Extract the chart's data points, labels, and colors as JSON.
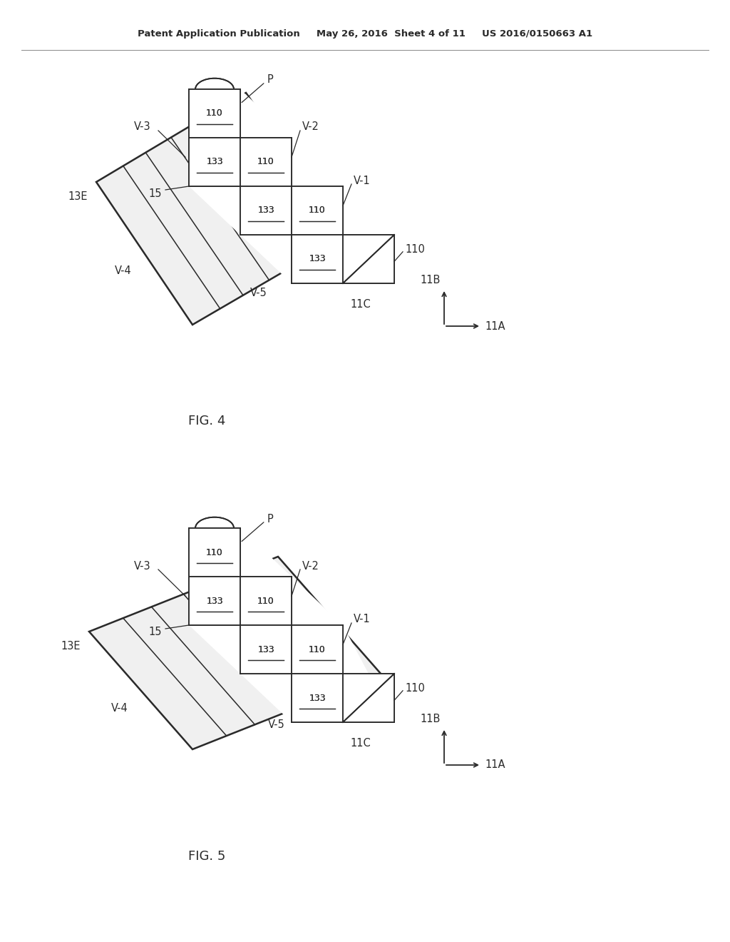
{
  "header": "Patent Application Publication     May 26, 2016  Sheet 4 of 11     US 2016/0150663 A1",
  "fig4_label": "FIG. 4",
  "fig5_label": "FIG. 5",
  "bg_color": "#ffffff",
  "line_color": "#2a2a2a",
  "lw": 1.3,
  "font_size_header": 9.5,
  "font_size_fig": 13,
  "font_size_ref": 10.5
}
